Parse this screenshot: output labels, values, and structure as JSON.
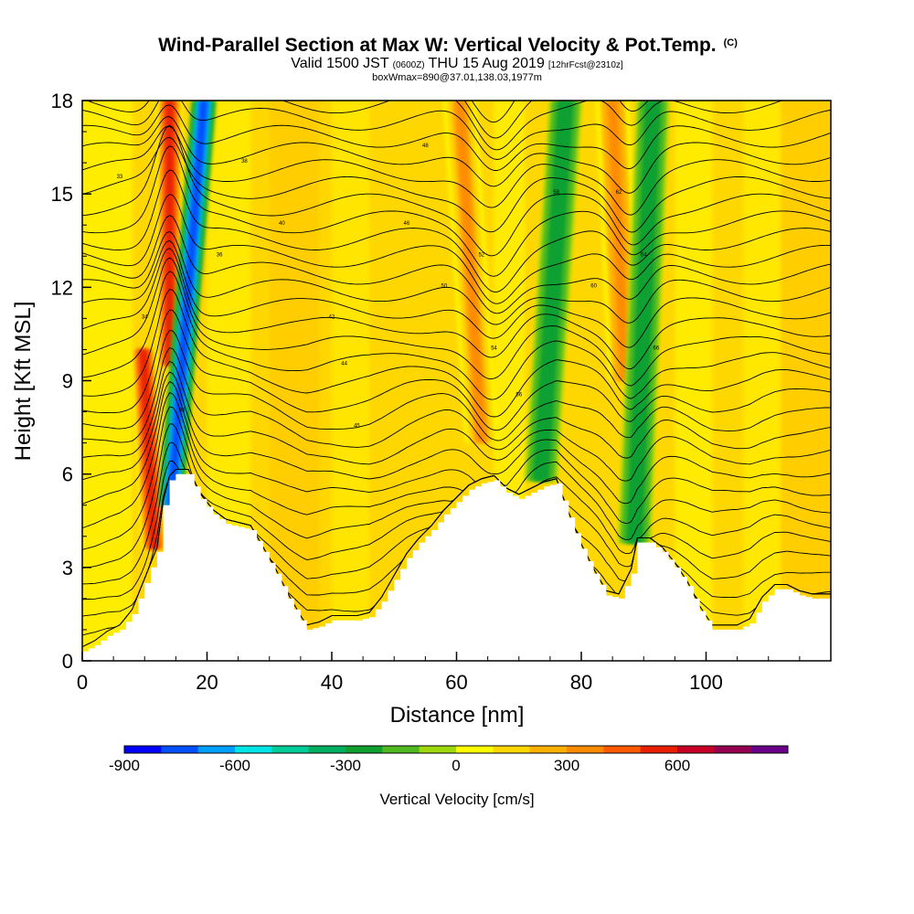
{
  "chart_data": {
    "type": "heatmap",
    "title": "Wind-Parallel Section at Max W: Vertical Velocity & Pot.Temp.",
    "title_suffix": "(C)",
    "subtitle": {
      "prefix": "Valid 1500 JST",
      "utc": "(0600Z)",
      "date": "THU 15 Aug 2019",
      "forecast": "[12hrFcst@2310z]"
    },
    "subtitle2": "boxWmax=890@37.01,138.03,1977m",
    "xlabel": "Distance [nm]",
    "ylabel": "Height [Kft MSL]",
    "xlim": [
      0,
      120
    ],
    "ylim": [
      0,
      18
    ],
    "x_ticks": [
      0,
      20,
      40,
      60,
      80,
      100
    ],
    "x_tick_labels": [
      "0",
      "20",
      "40",
      "60",
      "80",
      "100"
    ],
    "y_ticks": [
      0,
      3,
      6,
      9,
      12,
      15,
      18
    ],
    "y_tick_labels": [
      "0",
      "3",
      "6",
      "9",
      "12",
      "15",
      "18"
    ],
    "colorbar": {
      "label": "Vertical Velocity [cm/s]",
      "tick_values": [
        -900,
        -600,
        -300,
        0,
        300,
        600
      ],
      "tick_labels": [
        "-900",
        "-600",
        "-300",
        "0",
        "300",
        "600"
      ],
      "colors": [
        "#0000ff",
        "#0050ff",
        "#00a0ff",
        "#00e6e6",
        "#00cc99",
        "#00b060",
        "#10a030",
        "#50b820",
        "#a0d810",
        "#ffff00",
        "#ffd700",
        "#ffb000",
        "#ff8c00",
        "#ff5a00",
        "#e82000",
        "#c80028",
        "#960050",
        "#6a0088"
      ]
    },
    "terrain_kft": [
      [
        0,
        0.3
      ],
      [
        2,
        0.5
      ],
      [
        4,
        0.8
      ],
      [
        6,
        1.0
      ],
      [
        8,
        1.5
      ],
      [
        10,
        2.5
      ],
      [
        12,
        3.5
      ],
      [
        13,
        5.0
      ],
      [
        14,
        5.8
      ],
      [
        15,
        6.0
      ],
      [
        17,
        6.0
      ],
      [
        19,
        5.2
      ],
      [
        21,
        4.7
      ],
      [
        23,
        4.4
      ],
      [
        25,
        4.3
      ],
      [
        27,
        4.2
      ],
      [
        29,
        3.5
      ],
      [
        31,
        2.8
      ],
      [
        33,
        2.0
      ],
      [
        35,
        1.3
      ],
      [
        36,
        1.0
      ],
      [
        38,
        1.1
      ],
      [
        40,
        1.3
      ],
      [
        42,
        1.3
      ],
      [
        44,
        1.3
      ],
      [
        46,
        1.4
      ],
      [
        48,
        1.9
      ],
      [
        50,
        2.6
      ],
      [
        52,
        3.3
      ],
      [
        54,
        3.8
      ],
      [
        56,
        4.2
      ],
      [
        58,
        4.7
      ],
      [
        60,
        5.1
      ],
      [
        62,
        5.5
      ],
      [
        64,
        5.7
      ],
      [
        66,
        5.8
      ],
      [
        68,
        5.4
      ],
      [
        70,
        5.2
      ],
      [
        72,
        5.4
      ],
      [
        74,
        5.6
      ],
      [
        76,
        5.7
      ],
      [
        78,
        4.6
      ],
      [
        80,
        3.6
      ],
      [
        82,
        2.8
      ],
      [
        84,
        2.1
      ],
      [
        86,
        2.0
      ],
      [
        88,
        2.8
      ],
      [
        89,
        3.8
      ],
      [
        91,
        3.8
      ],
      [
        93,
        3.5
      ],
      [
        95,
        3.0
      ],
      [
        97,
        2.4
      ],
      [
        99,
        1.6
      ],
      [
        101,
        1.0
      ],
      [
        103,
        1.0
      ],
      [
        105,
        1.0
      ],
      [
        107,
        1.2
      ],
      [
        109,
        1.9
      ],
      [
        111,
        2.3
      ],
      [
        113,
        2.3
      ],
      [
        115,
        2.1
      ],
      [
        117,
        2.0
      ],
      [
        120,
        2.0
      ]
    ],
    "vertical_velocity_features": [
      {
        "type": "updraft",
        "x_bottom": 11.5,
        "x_top": 9.8,
        "y_bottom": 3.6,
        "y_top": 10.0,
        "peak_cm_s": 650
      },
      {
        "type": "updraft",
        "x_bottom": 14.0,
        "x_top": 14.0,
        "y_bottom": 9.5,
        "y_top": 18.0,
        "peak_cm_s": 600
      },
      {
        "type": "downdraft",
        "x_bottom": 14.2,
        "x_top": 19.5,
        "y_bottom": 5.0,
        "y_top": 18.0,
        "peak_cm_s": -850
      },
      {
        "type": "updraft",
        "x_bottom": 64.0,
        "x_top": 60.5,
        "y_bottom": 7.0,
        "y_top": 18.0,
        "peak_cm_s": 350
      },
      {
        "type": "downdraft",
        "x_bottom": 73.5,
        "x_top": 77.5,
        "y_bottom": 5.8,
        "y_top": 18.0,
        "peak_cm_s": -300
      },
      {
        "type": "updraft",
        "x_bottom": 87.0,
        "x_top": 85.0,
        "y_bottom": 9.0,
        "y_top": 18.0,
        "peak_cm_s": 380
      },
      {
        "type": "downdraft",
        "x_bottom": 88.5,
        "x_top": 91.5,
        "y_bottom": 3.8,
        "y_top": 18.0,
        "peak_cm_s": -320
      }
    ],
    "isentrope_labels": [
      "33",
      "34",
      "35",
      "36",
      "38",
      "40",
      "42",
      "44",
      "45",
      "46",
      "48",
      "50",
      "52",
      "54",
      "56",
      "58",
      "60",
      "62",
      "64",
      "66"
    ]
  }
}
